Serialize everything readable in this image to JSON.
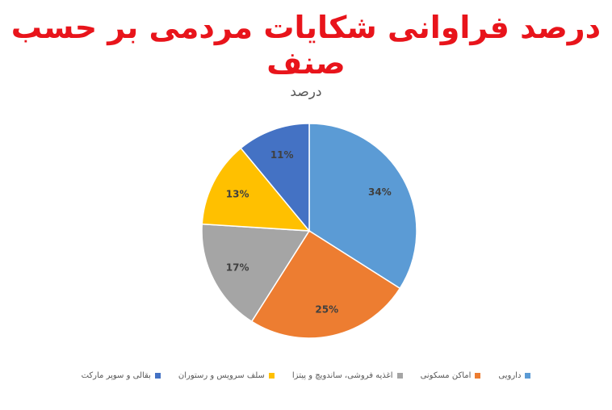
{
  "title": "درصد فراوانی شکایات مردمی بر حسب صنف",
  "chart_data": {
    "type": "pie",
    "title": "درصد",
    "categories": [
      "دارویی",
      "اماکن مسکونی",
      "اغذیه فروشی، ساندویچ و پیتزا",
      "سلف سرویس و رستوران",
      "بقالی و سوپر مارکت"
    ],
    "values": [
      34,
      25,
      17,
      13,
      11
    ],
    "labels": [
      "34%",
      "25%",
      "17%",
      "13%",
      "11%"
    ],
    "colors": [
      "#5b9bd5",
      "#ed7d31",
      "#a5a5a5",
      "#ffc000",
      "#4472c4"
    ],
    "legend": "bottom"
  }
}
